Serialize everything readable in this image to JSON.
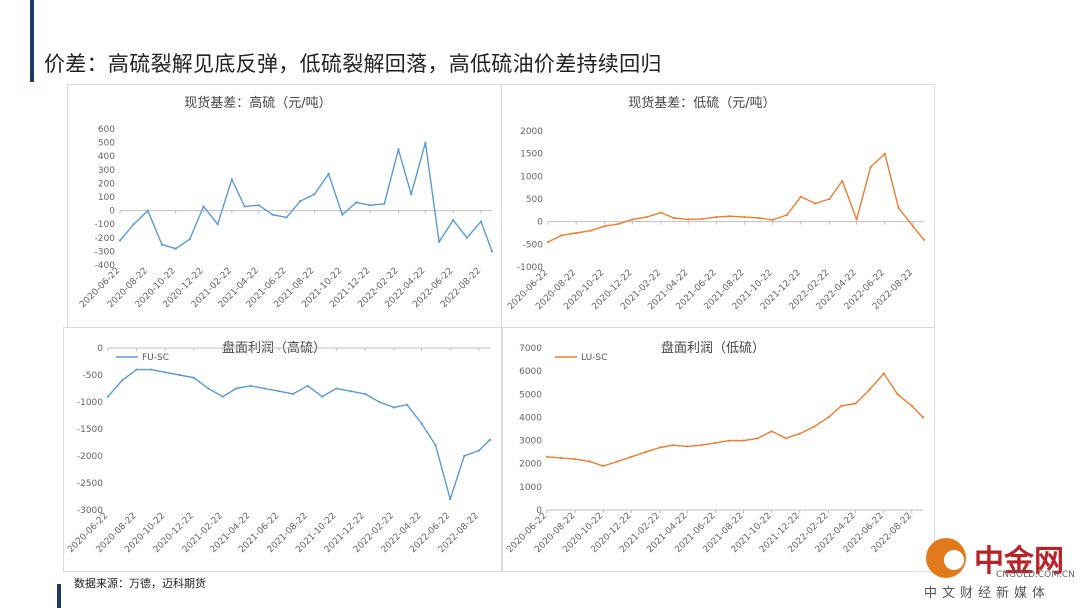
{
  "slide_title": "价差：高硫裂解见底反弹，低硫裂解回落，高低硫油价差持续回归",
  "source_note": "数据来源：万德，迈科期货",
  "logo": {
    "name": "中金网",
    "url": "CNGOLD.COM.CN",
    "tagline": "中文财经新媒体"
  },
  "colors": {
    "blue": "#5b9bd5",
    "orange": "#ed7d31",
    "accent_bar": "#1f3864",
    "logo_red": "#b8232a",
    "logo_orange": "#e07a1a"
  },
  "chart_data": [
    {
      "type": "line",
      "title": "现货基差：高硫（元/吨）",
      "color": "#5b9bd5",
      "ylim": [
        -400,
        600
      ],
      "yticks": [
        -400,
        -300,
        -200,
        -100,
        0,
        100,
        200,
        300,
        400,
        500,
        600
      ],
      "xticks": [
        "2020-06-22",
        "2020-08-22",
        "2020-10-22",
        "2020-12-22",
        "2021-02-22",
        "2021-04-22",
        "2021-06-22",
        "2021-08-22",
        "2021-10-22",
        "2021-12-22",
        "2022-02-22",
        "2022-04-22",
        "2022-06-22",
        "2022-08-22"
      ],
      "x": [
        "2020-06-22",
        "2020-07-22",
        "2020-08-22",
        "2020-09-22",
        "2020-10-22",
        "2020-11-22",
        "2020-12-22",
        "2021-01-22",
        "2021-02-22",
        "2021-03-22",
        "2021-04-22",
        "2021-05-22",
        "2021-06-22",
        "2021-07-22",
        "2021-08-22",
        "2021-09-22",
        "2021-10-22",
        "2021-11-22",
        "2021-12-22",
        "2022-01-22",
        "2022-02-22",
        "2022-03-22",
        "2022-04-22",
        "2022-05-22",
        "2022-06-22",
        "2022-07-22",
        "2022-08-22",
        "2022-09-15"
      ],
      "values": [
        -220,
        -100,
        0,
        -250,
        -280,
        -210,
        30,
        -100,
        230,
        30,
        40,
        -30,
        -50,
        70,
        120,
        270,
        -30,
        60,
        40,
        50,
        450,
        120,
        500,
        -230,
        -70,
        -200,
        -80,
        -300
      ]
    },
    {
      "type": "line",
      "title": "现货基差：低硫（元/吨）",
      "color": "#ed7d31",
      "ylim": [
        -1000,
        2000
      ],
      "yticks": [
        -1000,
        -500,
        0,
        500,
        1000,
        1500,
        2000
      ],
      "xticks": [
        "2020-06-22",
        "2020-08-22",
        "2020-10-22",
        "2020-12-22",
        "2021-02-22",
        "2021-04-22",
        "2021-06-22",
        "2021-08-22",
        "2021-10-22",
        "2021-12-22",
        "2022-02-22",
        "2022-04-22",
        "2022-06-22",
        "2022-08-22"
      ],
      "x": [
        "2020-06-22",
        "2020-07-22",
        "2020-08-22",
        "2020-09-22",
        "2020-10-22",
        "2020-11-22",
        "2020-12-22",
        "2021-01-22",
        "2021-02-22",
        "2021-03-22",
        "2021-04-22",
        "2021-05-22",
        "2021-06-22",
        "2021-07-22",
        "2021-08-22",
        "2021-09-22",
        "2021-10-22",
        "2021-11-22",
        "2021-12-22",
        "2022-01-22",
        "2022-02-22",
        "2022-03-22",
        "2022-04-22",
        "2022-05-22",
        "2022-06-22",
        "2022-07-22",
        "2022-08-22",
        "2022-09-15"
      ],
      "values": [
        -450,
        -300,
        -250,
        -200,
        -100,
        -50,
        50,
        100,
        200,
        80,
        50,
        60,
        100,
        120,
        100,
        80,
        40,
        150,
        550,
        400,
        500,
        900,
        50,
        1200,
        1500,
        300,
        -100,
        -400
      ]
    },
    {
      "type": "line",
      "title": "盘面利润（高硫）",
      "legend": "FU-SC",
      "color": "#5b9bd5",
      "ylim": [
        -3000,
        0
      ],
      "yticks": [
        -3000,
        -2500,
        -2000,
        -1500,
        -1000,
        -500,
        0
      ],
      "xticks": [
        "2020-06-22",
        "2020-08-22",
        "2020-10-22",
        "2020-12-22",
        "2021-02-22",
        "2021-04-22",
        "2021-06-22",
        "2021-08-22",
        "2021-10-22",
        "2021-12-22",
        "2022-02-22",
        "2022-04-22",
        "2022-06-22",
        "2022-08-22"
      ],
      "x": [
        "2020-06-22",
        "2020-07-22",
        "2020-08-22",
        "2020-09-22",
        "2020-10-22",
        "2020-11-22",
        "2020-12-22",
        "2021-01-22",
        "2021-02-22",
        "2021-03-22",
        "2021-04-22",
        "2021-05-22",
        "2021-06-22",
        "2021-07-22",
        "2021-08-22",
        "2021-09-22",
        "2021-10-22",
        "2021-11-22",
        "2021-12-22",
        "2022-01-22",
        "2022-02-22",
        "2022-03-22",
        "2022-04-22",
        "2022-05-22",
        "2022-06-22",
        "2022-07-22",
        "2022-08-22",
        "2022-09-15"
      ],
      "values": [
        -900,
        -600,
        -400,
        -400,
        -450,
        -500,
        -550,
        -750,
        -900,
        -750,
        -700,
        -750,
        -800,
        -850,
        -700,
        -900,
        -750,
        -800,
        -850,
        -1000,
        -1100,
        -1050,
        -1400,
        -1800,
        -2800,
        -2000,
        -1900,
        -1700
      ]
    },
    {
      "type": "line",
      "title": "盘面利润（低硫）",
      "legend": "LU-SC",
      "color": "#ed7d31",
      "ylim": [
        0,
        7000
      ],
      "yticks": [
        0,
        1000,
        2000,
        3000,
        4000,
        5000,
        6000,
        7000
      ],
      "xticks": [
        "2020-06-22",
        "2020-08-22",
        "2020-10-22",
        "2020-12-22",
        "2021-02-22",
        "2021-04-22",
        "2021-06-22",
        "2021-08-22",
        "2021-10-22",
        "2021-12-22",
        "2022-02-22",
        "2022-04-22",
        "2022-06-22",
        "2022-08-22"
      ],
      "x": [
        "2020-06-22",
        "2020-07-22",
        "2020-08-22",
        "2020-09-22",
        "2020-10-22",
        "2020-11-22",
        "2020-12-22",
        "2021-01-22",
        "2021-02-22",
        "2021-03-22",
        "2021-04-22",
        "2021-05-22",
        "2021-06-22",
        "2021-07-22",
        "2021-08-22",
        "2021-09-22",
        "2021-10-22",
        "2021-11-22",
        "2021-12-22",
        "2022-01-22",
        "2022-02-22",
        "2022-03-22",
        "2022-04-22",
        "2022-05-22",
        "2022-06-22",
        "2022-07-22",
        "2022-08-22",
        "2022-09-15"
      ],
      "values": [
        2300,
        2250,
        2200,
        2100,
        1900,
        2100,
        2300,
        2500,
        2700,
        2800,
        2750,
        2800,
        2900,
        3000,
        3000,
        3100,
        3400,
        3100,
        3300,
        3600,
        4000,
        4500,
        4600,
        5200,
        5900,
        5000,
        4500,
        4000
      ]
    }
  ]
}
